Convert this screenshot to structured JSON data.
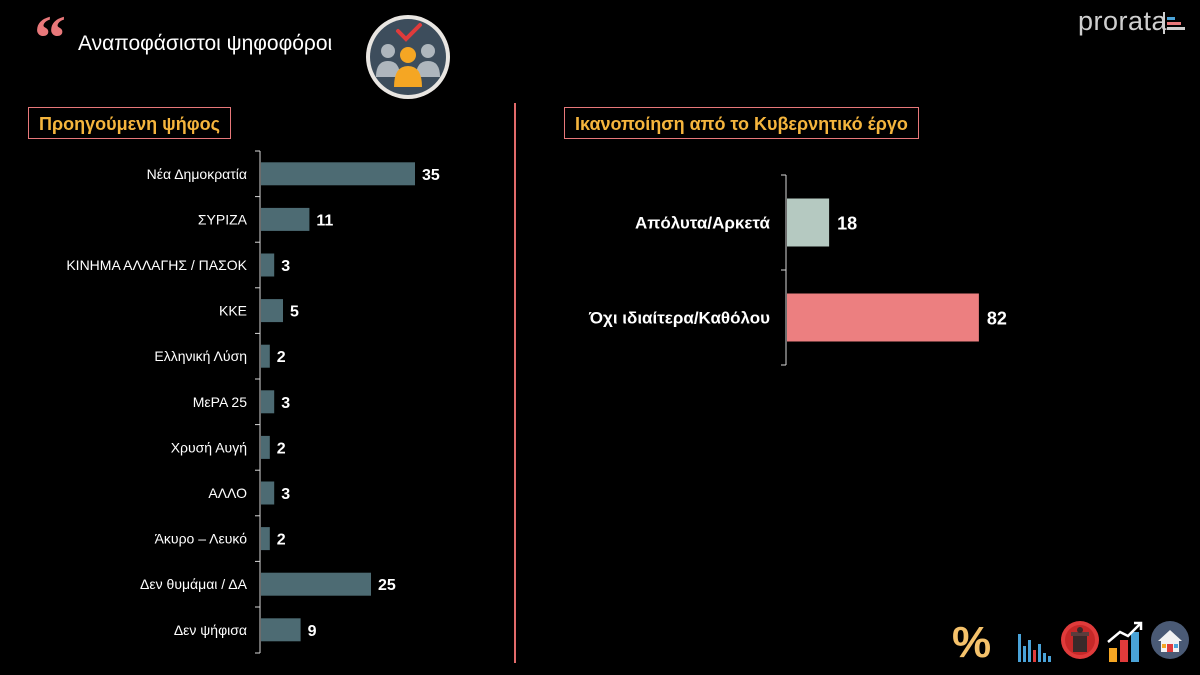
{
  "header": {
    "title": "Αναποφάσιστοι ψηφοφόροι",
    "logo_text": "prorata"
  },
  "left_section": {
    "title": "Προηγούμενη ψήφος"
  },
  "right_section": {
    "title": "Ικανοποίηση από το Κυβερνητικό έργο"
  },
  "colors": {
    "bar_left": "#4d6b73",
    "bar_right_1": "#b5c9c1",
    "bar_right_2": "#ec7f80",
    "accent": "#e8787a",
    "section_title": "#f5b53d"
  },
  "chart_data": [
    {
      "type": "bar",
      "orientation": "horizontal",
      "title": "Προηγούμενη ψήφος",
      "categories": [
        "Νέα Δημοκρατία",
        "ΣΥΡΙΖΑ",
        "ΚΙΝΗΜΑ ΑΛΛΑΓΗΣ / ΠΑΣΟΚ",
        "ΚΚΕ",
        "Ελληνική Λύση",
        "ΜεΡΑ 25",
        "Χρυσή Αυγή",
        "ΑΛΛΟ",
        "Άκυρο – Λευκό",
        "Δεν θυμάμαι / ΔΑ",
        "Δεν ψήφισα"
      ],
      "values": [
        35,
        11,
        3,
        5,
        2,
        3,
        2,
        3,
        2,
        25,
        9
      ],
      "xlim": [
        0,
        100
      ],
      "grid": false
    },
    {
      "type": "bar",
      "orientation": "horizontal",
      "title": "Ικανοποίηση από το Κυβερνητικό έργο",
      "categories": [
        "Απόλυτα/Αρκετά",
        "Όχι ιδιαίτερα/Καθόλου"
      ],
      "values": [
        18,
        82
      ],
      "xlim": [
        0,
        100
      ],
      "grid": false
    }
  ],
  "footer": {
    "icons": [
      "percent-icon",
      "bar-chart-icon",
      "podium-icon",
      "growth-chart-icon",
      "house-icon"
    ],
    "percent_symbol": "%"
  }
}
